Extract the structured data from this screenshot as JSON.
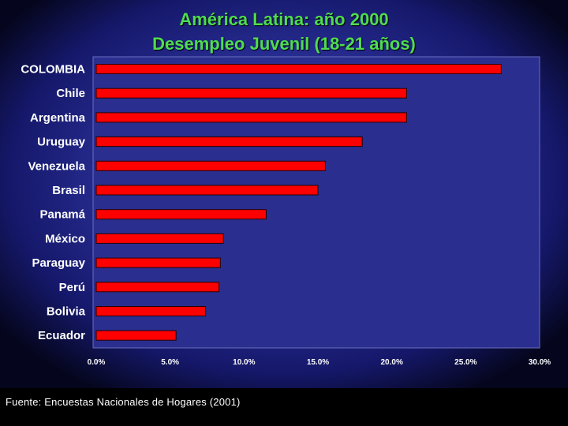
{
  "chart_data": {
    "type": "bar",
    "orientation": "horizontal",
    "title": "América Latina: año 2000",
    "subtitle": "Desempleo Juvenil (18-21 años)",
    "categories": [
      "COLOMBIA",
      "Chile",
      "Argentina",
      "Uruguay",
      "Venezuela",
      "Brasil",
      "Panamá",
      "México",
      "Paraguay",
      "Perú",
      "Bolivia",
      "Ecuador"
    ],
    "values": [
      27.4,
      21.0,
      21.0,
      18.0,
      15.5,
      15.0,
      11.5,
      8.6,
      8.4,
      8.3,
      7.4,
      5.4
    ],
    "xlim": [
      0,
      30
    ],
    "xticks": [
      0,
      5,
      10,
      15,
      20,
      25,
      30
    ],
    "xtick_labels": [
      "0.0%",
      "5.0%",
      "10.0%",
      "15.0%",
      "20.0%",
      "25.0%",
      "30.0%"
    ],
    "bar_color": "#ff0000",
    "grid": false
  },
  "footer": "Fuente: Encuestas Nacionales de Hogares (2001)"
}
